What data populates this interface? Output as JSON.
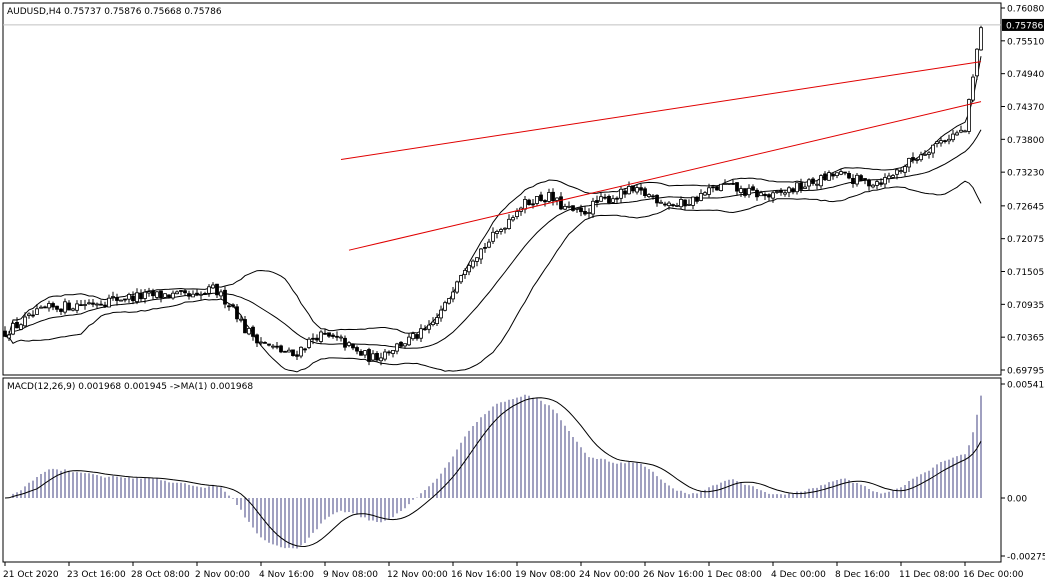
{
  "chart_data": [
    {
      "type": "candlestick",
      "symbol_label": "AUDUSD,H4",
      "ohlc_label": "0.75737 0.75876 0.75668 0.75786",
      "ylim": [
        0.69795,
        0.7608
      ],
      "y_ticks": [
        "0.76080",
        "0.75510",
        "0.74940",
        "0.74370",
        "0.73800",
        "0.73230",
        "0.72645",
        "0.72075",
        "0.71505",
        "0.70935",
        "0.70365",
        "0.69795"
      ],
      "y_tick_values": [
        0.7608,
        0.7551,
        0.7494,
        0.7437,
        0.738,
        0.7323,
        0.72645,
        0.72075,
        0.71505,
        0.70935,
        0.70365,
        0.69795
      ],
      "current_price": "0.75786",
      "current_price_value": 0.75786,
      "x_ticks": [
        "21 Oct 2020",
        "23 Oct 16:00",
        "28 Oct 08:00",
        "2 Nov 00:00",
        "4 Nov 16:00",
        "9 Nov 08:00",
        "12 Nov 00:00",
        "16 Nov 16:00",
        "19 Nov 08:00",
        "24 Nov 00:00",
        "26 Nov 16:00",
        "1 Dec 08:00",
        "4 Dec 00:00",
        "8 Dec 16:00",
        "11 Dec 08:00",
        "16 Dec 00:00"
      ],
      "x_tick_index": [
        0,
        16,
        32,
        48,
        64,
        80,
        96,
        112,
        128,
        144,
        160,
        176,
        192,
        208,
        224,
        240
      ],
      "bar_count": 245,
      "close_path": [
        [
          0,
          0.7045
        ],
        [
          10,
          0.7085
        ],
        [
          20,
          0.7095
        ],
        [
          30,
          0.7105
        ],
        [
          40,
          0.711
        ],
        [
          48,
          0.7105
        ],
        [
          52,
          0.712
        ],
        [
          57,
          0.709
        ],
        [
          60,
          0.705
        ],
        [
          66,
          0.702
        ],
        [
          72,
          0.7005
        ],
        [
          78,
          0.704
        ],
        [
          84,
          0.703
        ],
        [
          88,
          0.701
        ],
        [
          92,
          0.7
        ],
        [
          96,
          0.7015
        ],
        [
          102,
          0.7035
        ],
        [
          106,
          0.705
        ],
        [
          110,
          0.709
        ],
        [
          113,
          0.714
        ],
        [
          116,
          0.717
        ],
        [
          120,
          0.7195
        ],
        [
          124,
          0.7225
        ],
        [
          128,
          0.726
        ],
        [
          132,
          0.7275
        ],
        [
          136,
          0.728
        ],
        [
          140,
          0.726
        ],
        [
          144,
          0.725
        ],
        [
          148,
          0.727
        ],
        [
          152,
          0.728
        ],
        [
          156,
          0.729
        ],
        [
          160,
          0.7285
        ],
        [
          164,
          0.7275
        ],
        [
          168,
          0.7265
        ],
        [
          172,
          0.7275
        ],
        [
          176,
          0.729
        ],
        [
          180,
          0.73
        ],
        [
          184,
          0.729
        ],
        [
          188,
          0.7285
        ],
        [
          192,
          0.728
        ],
        [
          196,
          0.7292
        ],
        [
          200,
          0.73
        ],
        [
          204,
          0.731
        ],
        [
          208,
          0.732
        ],
        [
          212,
          0.731
        ],
        [
          216,
          0.7305
        ],
        [
          220,
          0.731
        ],
        [
          224,
          0.733
        ],
        [
          228,
          0.735
        ],
        [
          232,
          0.737
        ],
        [
          236,
          0.7385
        ],
        [
          240,
          0.7395
        ],
        [
          244,
          0.7578
        ]
      ],
      "upper_channel": [
        [
          84,
          0.7345
        ],
        [
          244,
          0.7515
        ]
      ],
      "lower_channel": [
        [
          86,
          0.71875
        ],
        [
          244,
          0.74455
        ]
      ]
    },
    {
      "type": "macd",
      "label": "MACD(12,26,9) 0.001968 0.001945 ->MA(1) 0.001968",
      "ylim": [
        -0.002753,
        0.005413
      ],
      "y_ticks": [
        "0.005413",
        "0.00",
        "-0.002753"
      ],
      "y_tick_values": [
        0.005413,
        0.0,
        -0.002753
      ]
    }
  ]
}
